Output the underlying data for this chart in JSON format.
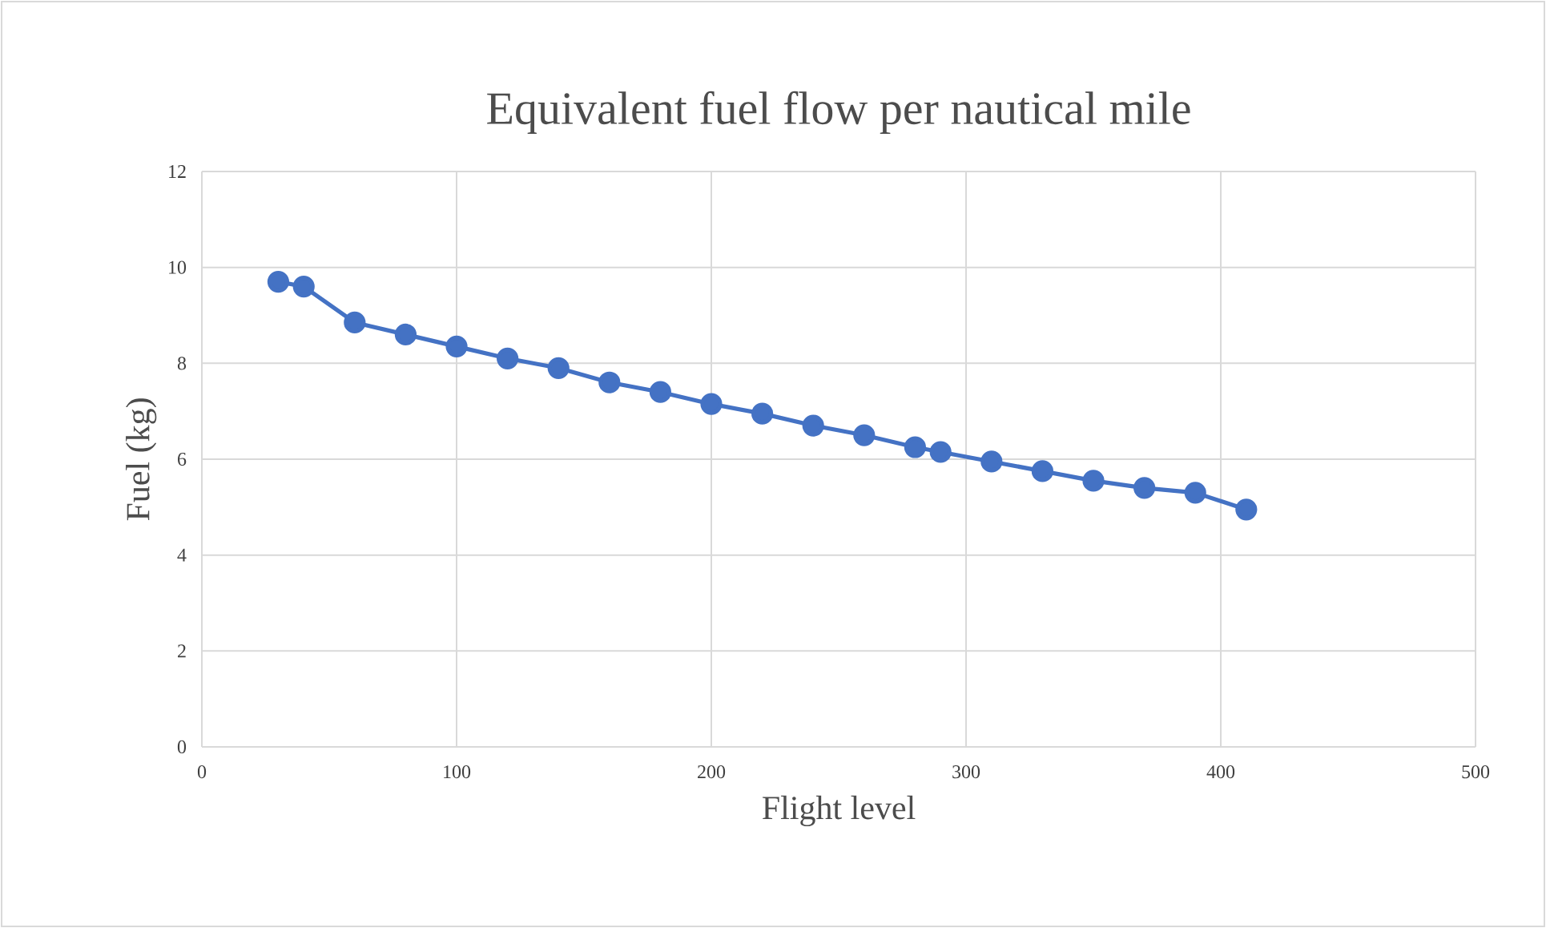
{
  "chart_data": {
    "type": "line",
    "title": "Equivalent fuel flow per nautical mile",
    "xlabel": "Flight level",
    "ylabel": "Fuel (kg)",
    "x": [
      30,
      40,
      60,
      80,
      100,
      120,
      140,
      160,
      180,
      200,
      220,
      240,
      260,
      280,
      290,
      310,
      330,
      350,
      370,
      390,
      410
    ],
    "series": [
      {
        "color": "#4472c4",
        "values": [
          9.7,
          9.6,
          8.85,
          8.6,
          8.35,
          8.1,
          7.9,
          7.6,
          7.4,
          7.15,
          6.95,
          6.7,
          6.5,
          6.25,
          6.15,
          5.95,
          5.75,
          5.55,
          5.4,
          5.3,
          4.95
        ]
      }
    ],
    "xlim": [
      0,
      500
    ],
    "xticks": [
      0,
      100,
      200,
      300,
      400,
      500
    ],
    "ylim": [
      0,
      12
    ],
    "yticks": [
      0,
      2,
      4,
      6,
      8,
      10,
      12
    ],
    "grid": true,
    "marker": "circle",
    "line_style": "solid"
  }
}
